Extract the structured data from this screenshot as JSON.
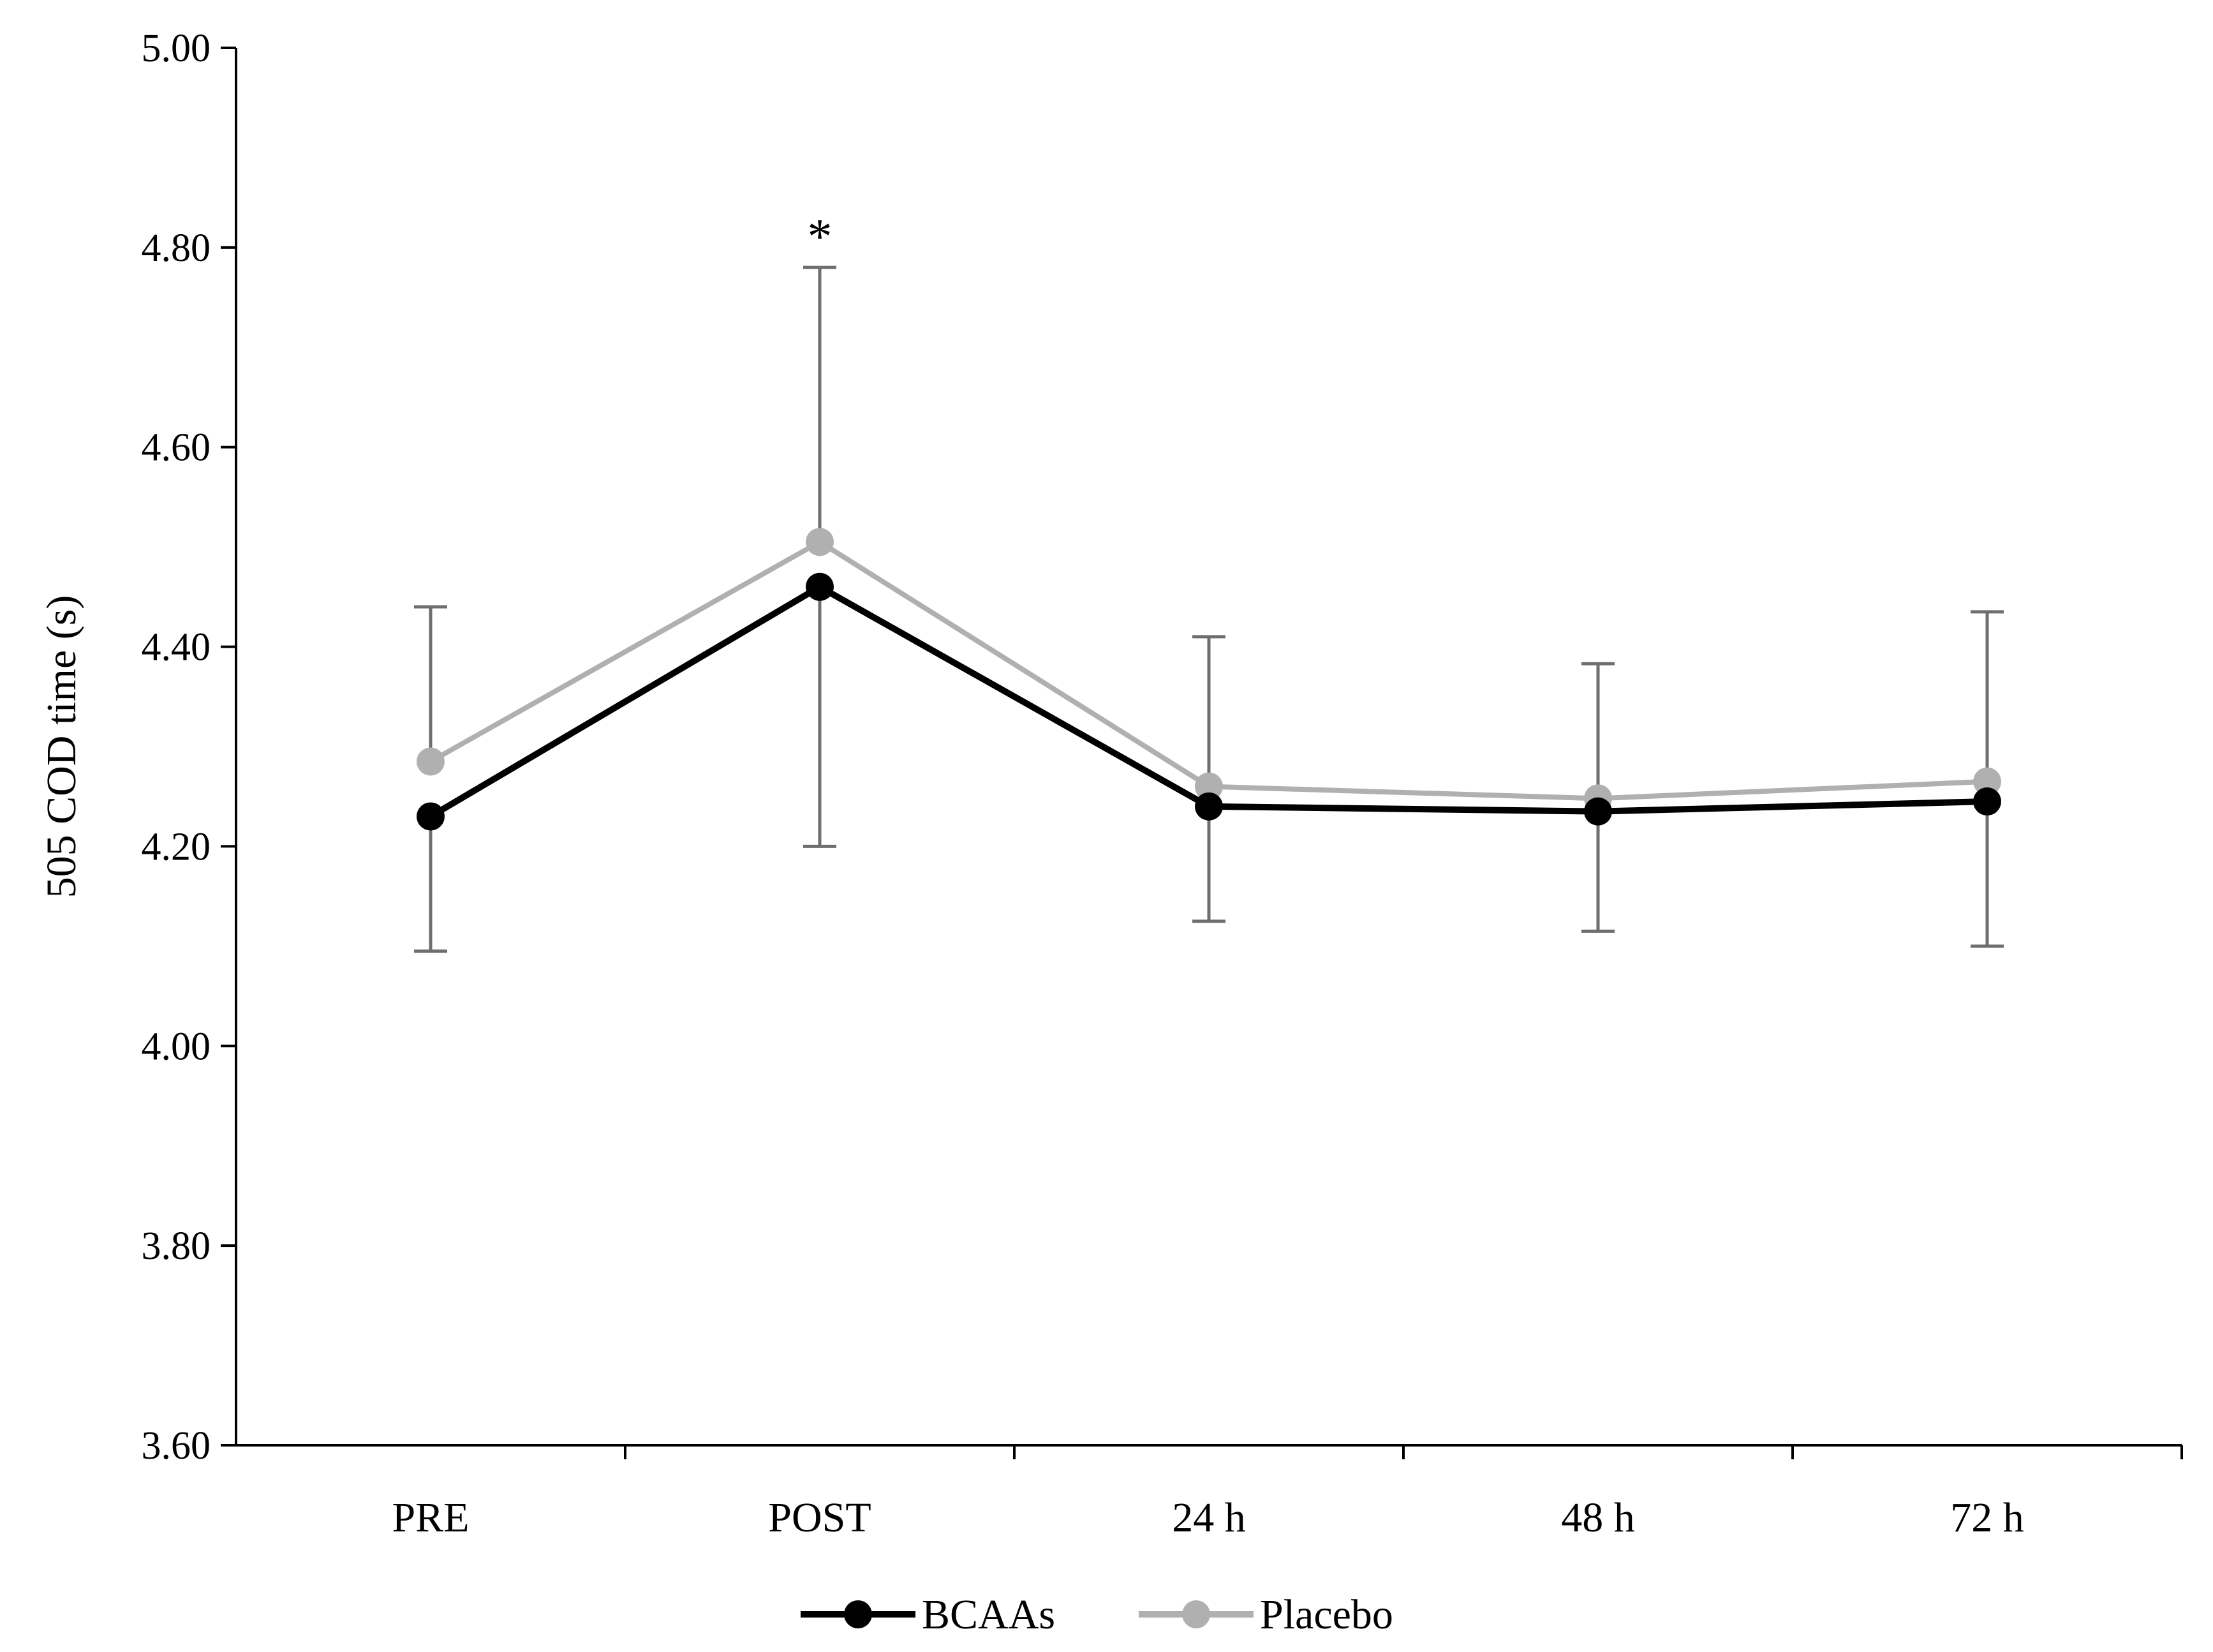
{
  "chart_data": {
    "type": "line",
    "title": "",
    "xlabel": "",
    "ylabel": "505 COD time (s)",
    "categories": [
      "PRE",
      "POST",
      "24 h",
      "48 h",
      "72 h"
    ],
    "ylim": [
      3.6,
      5.0
    ],
    "yticks": [
      "3.60",
      "3.80",
      "4.00",
      "4.20",
      "4.40",
      "4.60",
      "4.80",
      "5.00"
    ],
    "ytick_values": [
      3.6,
      3.8,
      4.0,
      4.2,
      4.4,
      4.6,
      4.8,
      5.0
    ],
    "grid": false,
    "legend_position": "bottom-center",
    "series": [
      {
        "name": "BCAAs",
        "color": "#000000",
        "values": [
          4.23,
          4.46,
          4.24,
          4.235,
          4.245
        ],
        "error": [
          0.135,
          0.26,
          0.115,
          0.12,
          0.145
        ]
      },
      {
        "name": "Placebo",
        "color": "#b0b0b0",
        "values": [
          4.285,
          4.505,
          4.26,
          4.248,
          4.265
        ],
        "error": [
          0.155,
          0.275,
          0.15,
          0.135,
          0.17
        ]
      }
    ],
    "annotations": [
      {
        "text": "*",
        "category": "POST",
        "value": 4.82
      }
    ]
  }
}
